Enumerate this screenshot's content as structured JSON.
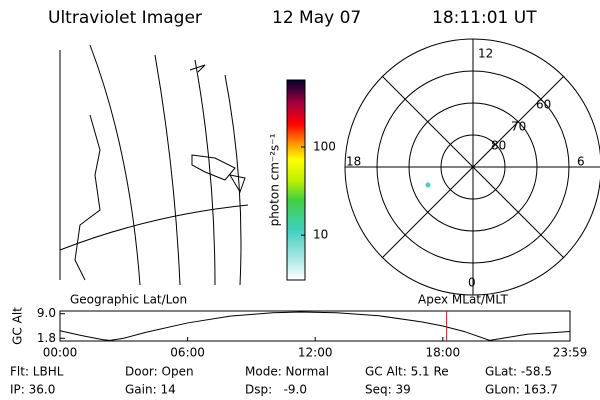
{
  "header": {
    "title": "Ultraviolet Imager",
    "date": "12 May 07",
    "time": "18:11:01 UT"
  },
  "colorbar": {
    "label": "photon cm⁻²s⁻¹",
    "scale": "log",
    "lim": [
      3.1,
      575
    ],
    "ticks": [
      10,
      100
    ]
  },
  "polar": {
    "mlt_labels": [
      "12",
      "6",
      "0",
      "18"
    ],
    "lat_labels": [
      "60",
      "70",
      "80"
    ]
  },
  "map_label": "Geographic Lat/Lon",
  "polar_label": "Apex MLat/MLT",
  "chart_data": {
    "type": "line",
    "ylabel": "GC Alt",
    "x": [
      0,
      1,
      2,
      2.35,
      3,
      4,
      6,
      8,
      10,
      11.3,
      13,
      15,
      17,
      18,
      19,
      20.2,
      21,
      22,
      23,
      23.98
    ],
    "series": [
      {
        "color": "#000000",
        "values": [
          4.0,
          2.6,
          1.4,
          1.2,
          1.8,
          3.5,
          6.3,
          8.3,
          9.3,
          9.5,
          9.3,
          8.4,
          6.6,
          5.4,
          3.8,
          1.2,
          2.0,
          3.0,
          3.4,
          3.8
        ]
      }
    ],
    "current_time": 18.18,
    "marker_color": "#ff0000",
    "xlim": [
      0,
      23.98
    ],
    "ylim": [
      1.0,
      9.8
    ],
    "xticks": [
      {
        "value": 0,
        "label": "00:00"
      },
      {
        "value": 6,
        "label": "06:00"
      },
      {
        "value": 12,
        "label": "12:00"
      },
      {
        "value": 18,
        "label": "18:00"
      },
      {
        "value": 23.98,
        "label": "23:59"
      }
    ],
    "yticks": [
      {
        "value": 9.0,
        "label": "9.0"
      },
      {
        "value": 1.8,
        "label": "1.8"
      }
    ]
  },
  "footer": [
    [
      "Flt: LBHL",
      "Door: Open",
      "Mode: Normal",
      "GC Alt: 5.1 Re",
      "GLat: -58.5"
    ],
    [
      "IP: 36.0",
      "Gain: 14",
      "Dsp:   -9.0",
      "Seq: 39",
      "GLon: 163.7"
    ]
  ]
}
